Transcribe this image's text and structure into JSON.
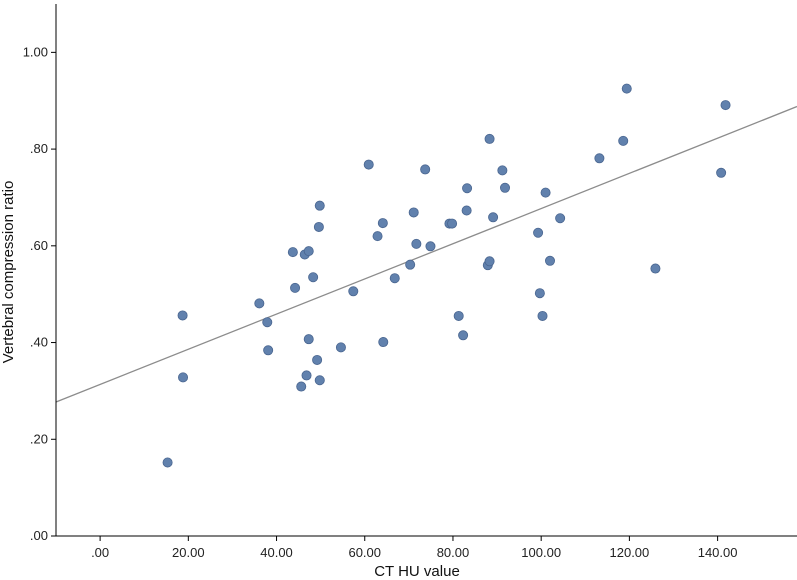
{
  "chart_data": {
    "type": "scatter",
    "title": "",
    "xlabel": "CT HU value",
    "ylabel": "Vertebral compression ratio",
    "xlim": [
      -10,
      158
    ],
    "ylim": [
      0.0,
      1.1
    ],
    "x_ticks": [
      0,
      20,
      40,
      60,
      80,
      100,
      120,
      140
    ],
    "x_tick_labels": [
      ".00",
      "20.00",
      "40.00",
      "60.00",
      "80.00",
      "100.00",
      "120.00",
      "140.00"
    ],
    "y_ticks": [
      0.0,
      0.2,
      0.4,
      0.6,
      0.8,
      1.0
    ],
    "y_tick_labels": [
      ".00",
      ".20",
      ".40",
      ".60",
      ".80",
      "1.00"
    ],
    "grid": false,
    "legend": "none",
    "colors": {
      "point_fill": "#6181ad",
      "point_stroke": "#4a6690",
      "fit_line": "#8c8c8c",
      "axis": "#000000"
    },
    "fit_line": {
      "type": "linear",
      "points": [
        [
          -10,
          0.277
        ],
        [
          158,
          0.888
        ]
      ]
    },
    "points": [
      [
        15.3,
        0.152
      ],
      [
        18.7,
        0.456
      ],
      [
        18.8,
        0.328
      ],
      [
        36.1,
        0.481
      ],
      [
        37.9,
        0.442
      ],
      [
        38.1,
        0.384
      ],
      [
        43.7,
        0.587
      ],
      [
        44.2,
        0.513
      ],
      [
        45.6,
        0.309
      ],
      [
        46.4,
        0.582
      ],
      [
        46.8,
        0.332
      ],
      [
        47.3,
        0.589
      ],
      [
        47.3,
        0.407
      ],
      [
        48.3,
        0.535
      ],
      [
        49.2,
        0.364
      ],
      [
        49.6,
        0.639
      ],
      [
        49.8,
        0.683
      ],
      [
        49.8,
        0.322
      ],
      [
        54.6,
        0.39
      ],
      [
        57.4,
        0.506
      ],
      [
        60.9,
        0.768
      ],
      [
        62.9,
        0.62
      ],
      [
        64.1,
        0.647
      ],
      [
        64.2,
        0.401
      ],
      [
        66.8,
        0.533
      ],
      [
        70.3,
        0.561
      ],
      [
        71.1,
        0.669
      ],
      [
        71.7,
        0.604
      ],
      [
        73.7,
        0.758
      ],
      [
        74.9,
        0.599
      ],
      [
        79.2,
        0.646
      ],
      [
        79.8,
        0.646
      ],
      [
        81.3,
        0.455
      ],
      [
        82.3,
        0.415
      ],
      [
        83.1,
        0.673
      ],
      [
        83.2,
        0.719
      ],
      [
        87.9,
        0.56
      ],
      [
        88.3,
        0.821
      ],
      [
        88.3,
        0.568
      ],
      [
        89.1,
        0.659
      ],
      [
        91.2,
        0.756
      ],
      [
        91.8,
        0.72
      ],
      [
        99.3,
        0.627
      ],
      [
        99.7,
        0.502
      ],
      [
        100.3,
        0.455
      ],
      [
        101.0,
        0.71
      ],
      [
        102.0,
        0.569
      ],
      [
        104.3,
        0.657
      ],
      [
        113.2,
        0.781
      ],
      [
        118.6,
        0.817
      ],
      [
        119.4,
        0.925
      ],
      [
        125.9,
        0.553
      ],
      [
        140.8,
        0.751
      ],
      [
        141.8,
        0.891
      ]
    ]
  }
}
